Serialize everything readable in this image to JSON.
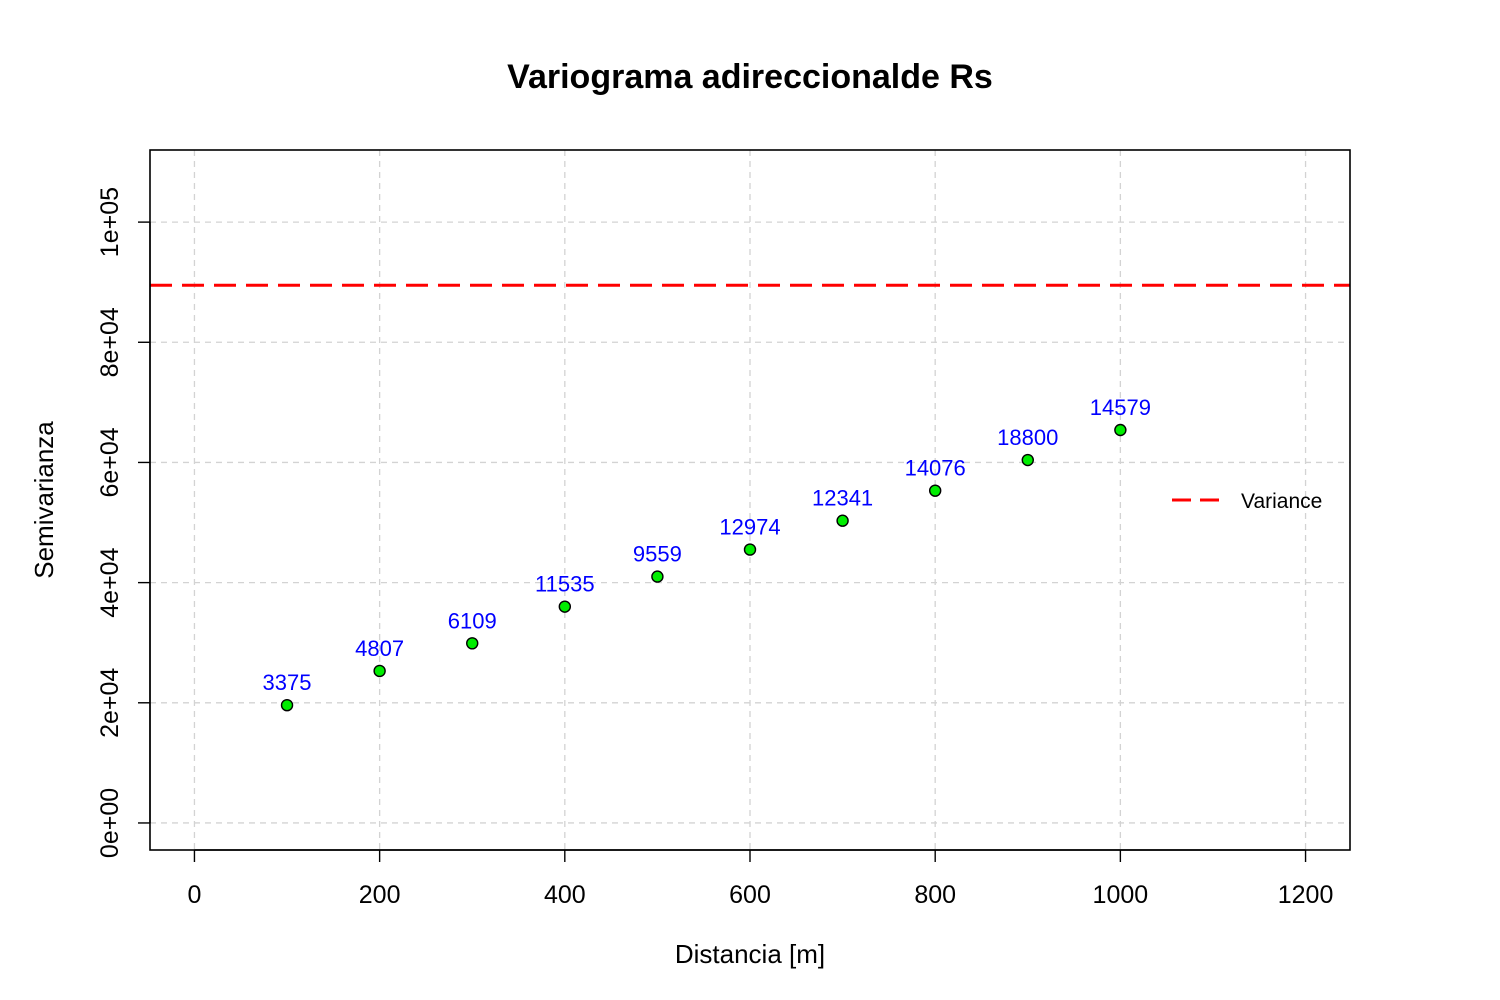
{
  "chart_data": {
    "type": "scatter",
    "title": "Variograma adireccionalde Rs",
    "xlabel": "Distancia [m]",
    "ylabel": "Semivarianza",
    "xlim": [
      -48,
      1248
    ],
    "ylim": [
      -4500,
      112000
    ],
    "x_ticks": [
      0,
      200,
      400,
      600,
      800,
      1000,
      1200
    ],
    "x_tick_labels": [
      "0",
      "200",
      "400",
      "600",
      "800",
      "1000",
      "1200"
    ],
    "y_ticks": [
      0,
      20000,
      40000,
      60000,
      80000,
      100000
    ],
    "y_tick_labels": [
      "0e+00",
      "2e+04",
      "4e+04",
      "6e+04",
      "8e+04",
      "1e+05"
    ],
    "grid": true,
    "points": {
      "x": [
        100,
        200,
        300,
        400,
        500,
        600,
        700,
        800,
        900,
        1000
      ],
      "y": [
        19600,
        25300,
        29900,
        36000,
        41000,
        45500,
        50300,
        55300,
        60400,
        65400
      ],
      "labels": [
        "3375",
        "4807",
        "6109",
        "11535",
        "9559",
        "12974",
        "12341",
        "14076",
        "18800",
        "14579"
      ],
      "fill_color": "#00ee00",
      "label_color": "#0000ff"
    },
    "reference_lines": [
      {
        "name": "Variance",
        "y": 89500,
        "color": "#ff0000",
        "style": "dashed"
      }
    ],
    "legend": {
      "position": "right",
      "entries": [
        "Variance"
      ]
    }
  }
}
